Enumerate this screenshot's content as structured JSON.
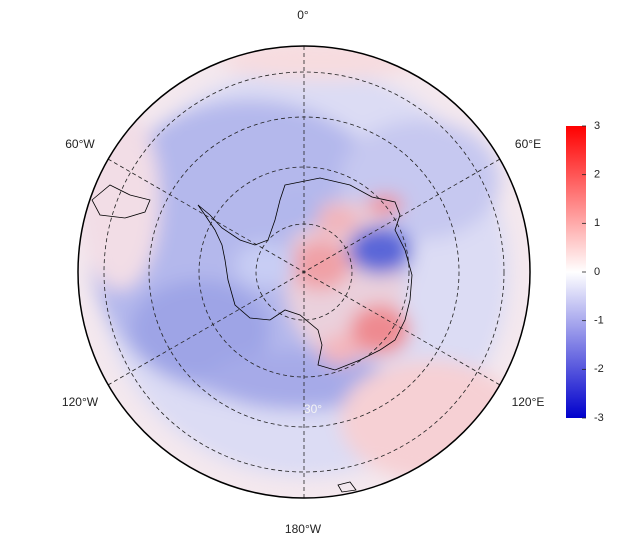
{
  "map": {
    "longitude_labels": [
      "0°",
      "60°E",
      "120°E",
      "180°W",
      "120°W",
      "60°W"
    ],
    "latitude_label": "30°"
  },
  "colorbar": {
    "lim": [
      -3,
      3
    ],
    "ticks": [
      3,
      2,
      1,
      0,
      -1,
      -2,
      -3
    ],
    "colors": [
      "#0000cc",
      "#ffffff",
      "#ff0000"
    ]
  }
}
